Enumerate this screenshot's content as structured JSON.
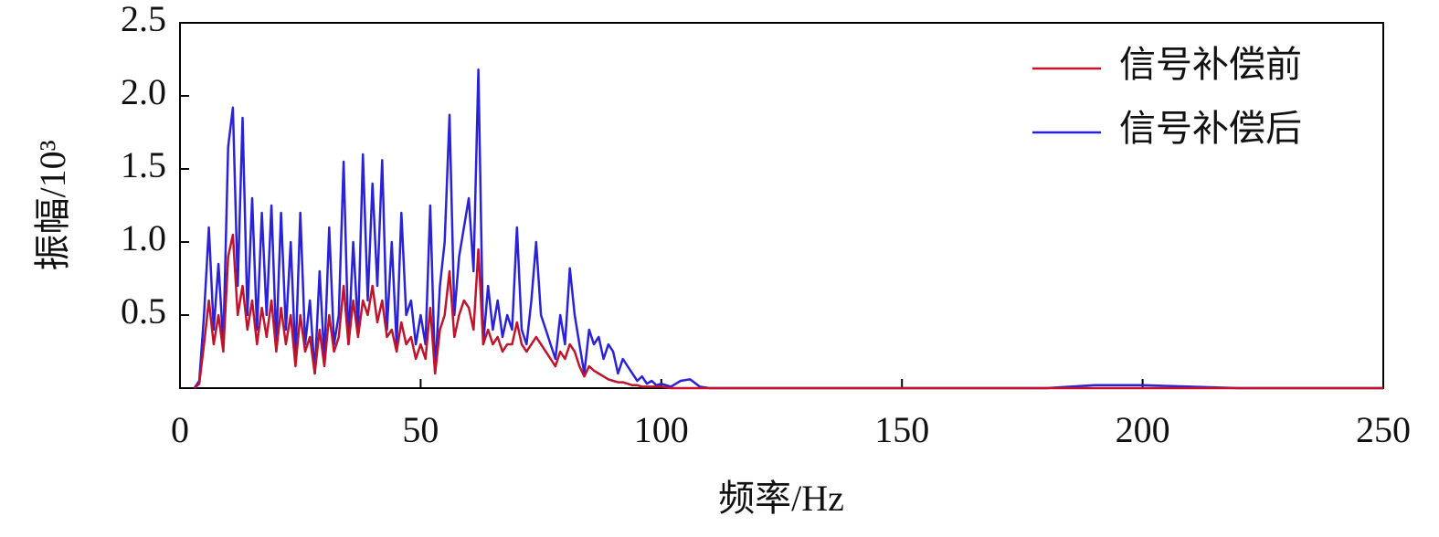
{
  "chart_data": {
    "type": "line",
    "xlabel": "频率/Hz",
    "ylabel": "振幅/10³",
    "xlim": [
      0,
      250
    ],
    "xticks": [
      0,
      50,
      100,
      150,
      200,
      250
    ],
    "ylim": [
      0,
      2.5
    ],
    "yticks": [
      0.5,
      {
        "value": 1,
        "label": "1.0"
      },
      1.5,
      {
        "value": 2,
        "label": "2.0"
      },
      2.5
    ],
    "legend": "upper-right",
    "x": [
      3,
      4,
      5,
      6,
      7,
      8,
      9,
      10,
      11,
      12,
      13,
      14,
      15,
      16,
      17,
      18,
      19,
      20,
      21,
      22,
      23,
      24,
      25,
      26,
      27,
      28,
      29,
      30,
      31,
      32,
      33,
      34,
      35,
      36,
      37,
      38,
      39,
      40,
      41,
      42,
      43,
      44,
      45,
      46,
      47,
      48,
      49,
      50,
      51,
      52,
      53,
      54,
      55,
      56,
      57,
      58,
      59,
      60,
      61,
      62,
      63,
      64,
      65,
      66,
      67,
      68,
      69,
      70,
      71,
      72,
      73,
      74,
      75,
      76,
      77,
      78,
      79,
      80,
      81,
      82,
      83,
      84,
      85,
      86,
      87,
      88,
      89,
      90,
      91,
      92,
      93,
      94,
      95,
      96,
      97,
      98,
      99,
      100,
      102,
      104,
      106,
      108,
      110,
      120,
      180,
      190,
      200,
      210,
      220,
      250
    ],
    "series": [
      {
        "name": "信号补偿前",
        "color": "#c0142c",
        "values": [
          0,
          0.03,
          0.3,
          0.6,
          0.3,
          0.5,
          0.25,
          0.9,
          1.05,
          0.5,
          0.7,
          0.4,
          0.6,
          0.3,
          0.55,
          0.35,
          0.6,
          0.25,
          0.55,
          0.3,
          0.5,
          0.15,
          0.5,
          0.25,
          0.35,
          0.1,
          0.4,
          0.15,
          0.5,
          0.25,
          0.35,
          0.7,
          0.3,
          0.6,
          0.35,
          0.6,
          0.5,
          0.7,
          0.45,
          0.6,
          0.35,
          0.4,
          0.25,
          0.45,
          0.3,
          0.35,
          0.2,
          0.3,
          0.2,
          0.55,
          0.1,
          0.4,
          0.5,
          0.8,
          0.35,
          0.5,
          0.6,
          0.55,
          0.4,
          0.95,
          0.3,
          0.4,
          0.3,
          0.35,
          0.25,
          0.3,
          0.3,
          0.45,
          0.3,
          0.25,
          0.3,
          0.35,
          0.3,
          0.25,
          0.2,
          0.15,
          0.25,
          0.2,
          0.3,
          0.25,
          0.15,
          0.08,
          0.15,
          0.12,
          0.1,
          0.08,
          0.06,
          0.05,
          0.04,
          0.04,
          0.03,
          0.02,
          0.02,
          0.01,
          0.01,
          0.01,
          0.01,
          0.01,
          0,
          0,
          0,
          0,
          0,
          0,
          0,
          0,
          0,
          0,
          0,
          0
        ]
      },
      {
        "name": "信号补偿后",
        "color": "#2a22d8",
        "values": [
          0,
          0.05,
          0.5,
          1.1,
          0.4,
          0.85,
          0.3,
          1.65,
          1.92,
          0.7,
          1.85,
          0.5,
          1.3,
          0.4,
          1.2,
          0.5,
          1.25,
          0.3,
          1.2,
          0.4,
          1.0,
          0.2,
          1.2,
          0.3,
          0.6,
          0.1,
          0.8,
          0.2,
          1.1,
          0.3,
          0.5,
          1.55,
          0.3,
          1.0,
          0.4,
          1.6,
          0.6,
          1.4,
          0.7,
          1.56,
          0.4,
          1.0,
          0.3,
          1.2,
          0.5,
          0.6,
          0.3,
          0.5,
          0.3,
          1.25,
          0.1,
          0.7,
          1.0,
          1.87,
          0.5,
          0.9,
          1.1,
          1.3,
          0.8,
          2.18,
          0.3,
          0.7,
          0.4,
          0.6,
          0.35,
          0.5,
          0.4,
          1.1,
          0.4,
          0.3,
          0.6,
          1.0,
          0.5,
          0.4,
          0.3,
          0.2,
          0.5,
          0.3,
          0.82,
          0.5,
          0.3,
          0.1,
          0.4,
          0.3,
          0.35,
          0.2,
          0.3,
          0.25,
          0.1,
          0.2,
          0.15,
          0.1,
          0.05,
          0.08,
          0.03,
          0.05,
          0.02,
          0.03,
          0.01,
          0.05,
          0.06,
          0.01,
          0,
          0,
          0,
          0.02,
          0.02,
          0.01,
          0,
          0
        ]
      }
    ]
  }
}
